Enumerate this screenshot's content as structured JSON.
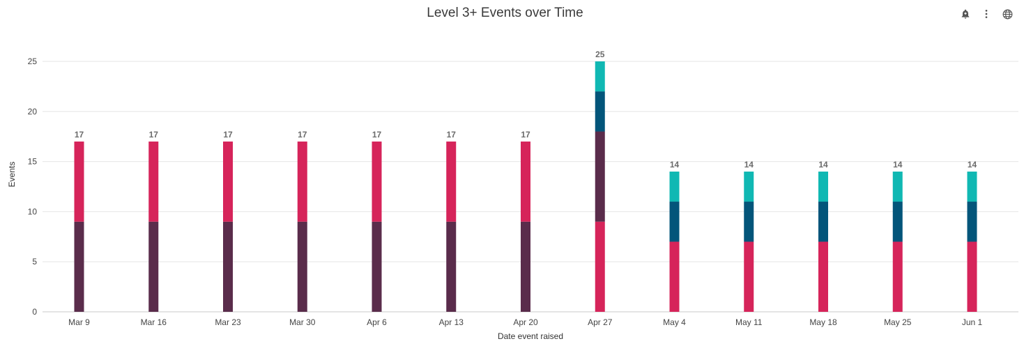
{
  "title": "Level 3+ Events over Time",
  "toolbar": {
    "icons": [
      "alert-bell-icon",
      "more-vert-icon",
      "globe-icon"
    ]
  },
  "colors": {
    "pink": "#d6245a",
    "plum": "#5a2c4b",
    "navy": "#03557a",
    "teal": "#10b8b3",
    "grid": "#e6e6e6",
    "axis": "#c9c9c9"
  },
  "chart_data": {
    "type": "bar",
    "stacked": true,
    "title": "Level 3+ Events over Time",
    "xlabel": "Date event raised",
    "ylabel": "Events",
    "ylim": [
      0,
      25
    ],
    "yticks": [
      0,
      5,
      10,
      15,
      20,
      25
    ],
    "grid": true,
    "categories": [
      "Mar 9",
      "Mar 16",
      "Mar 23",
      "Mar 30",
      "Apr 6",
      "Apr 13",
      "Apr 20",
      "Apr 27",
      "May 4",
      "May 11",
      "May 18",
      "May 25",
      "Jun 1"
    ],
    "totals": [
      17,
      17,
      17,
      17,
      17,
      17,
      17,
      25,
      14,
      14,
      14,
      14,
      14
    ],
    "segments": [
      [
        {
          "color": "plum",
          "value": 9
        },
        {
          "color": "pink",
          "value": 8
        }
      ],
      [
        {
          "color": "plum",
          "value": 9
        },
        {
          "color": "pink",
          "value": 8
        }
      ],
      [
        {
          "color": "plum",
          "value": 9
        },
        {
          "color": "pink",
          "value": 8
        }
      ],
      [
        {
          "color": "plum",
          "value": 9
        },
        {
          "color": "pink",
          "value": 8
        }
      ],
      [
        {
          "color": "plum",
          "value": 9
        },
        {
          "color": "pink",
          "value": 8
        }
      ],
      [
        {
          "color": "plum",
          "value": 9
        },
        {
          "color": "pink",
          "value": 8
        }
      ],
      [
        {
          "color": "plum",
          "value": 9
        },
        {
          "color": "pink",
          "value": 8
        }
      ],
      [
        {
          "color": "pink",
          "value": 9
        },
        {
          "color": "plum",
          "value": 9
        },
        {
          "color": "navy",
          "value": 4
        },
        {
          "color": "teal",
          "value": 3
        }
      ],
      [
        {
          "color": "pink",
          "value": 7
        },
        {
          "color": "navy",
          "value": 4
        },
        {
          "color": "teal",
          "value": 3
        }
      ],
      [
        {
          "color": "pink",
          "value": 7
        },
        {
          "color": "navy",
          "value": 4
        },
        {
          "color": "teal",
          "value": 3
        }
      ],
      [
        {
          "color": "pink",
          "value": 7
        },
        {
          "color": "navy",
          "value": 4
        },
        {
          "color": "teal",
          "value": 3
        }
      ],
      [
        {
          "color": "pink",
          "value": 7
        },
        {
          "color": "navy",
          "value": 4
        },
        {
          "color": "teal",
          "value": 3
        }
      ],
      [
        {
          "color": "pink",
          "value": 7
        },
        {
          "color": "navy",
          "value": 4
        },
        {
          "color": "teal",
          "value": 3
        }
      ]
    ]
  }
}
